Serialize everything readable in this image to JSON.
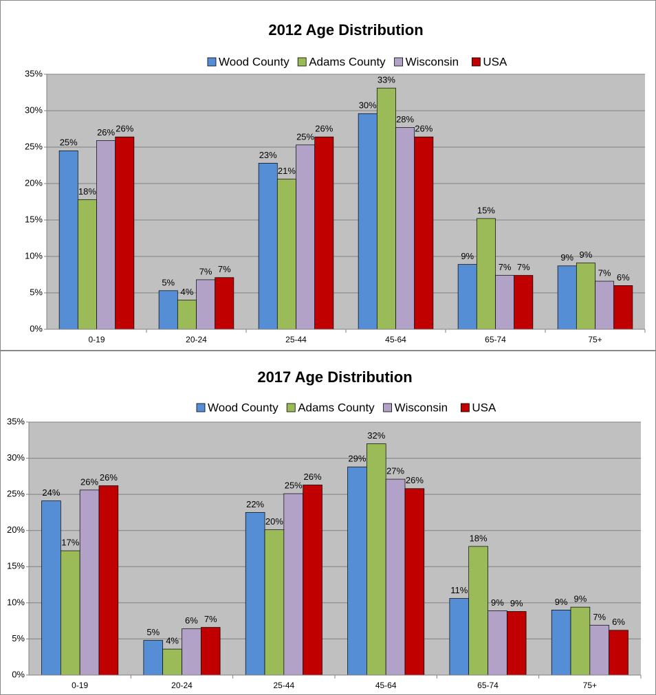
{
  "chart_data": [
    {
      "type": "bar",
      "title": "2012 Age Distribution",
      "categories": [
        "0-19",
        "20-24",
        "25-44",
        "45-64",
        "65-74",
        "75+"
      ],
      "series": [
        {
          "name": "Wood County",
          "color": "#558ed5",
          "values": [
            24.5,
            5.3,
            22.8,
            29.6,
            8.9,
            8.7
          ],
          "value_labels": [
            "25%",
            "5%",
            "23%",
            "30%",
            "9%",
            "9%"
          ]
        },
        {
          "name": "Adams County",
          "color": "#9bbb59",
          "values": [
            17.8,
            4.0,
            20.6,
            33.1,
            15.2,
            9.1
          ],
          "value_labels": [
            "18%",
            "4%",
            "21%",
            "33%",
            "15%",
            "9%"
          ]
        },
        {
          "name": "Wisconsin",
          "color": "#b3a2c7",
          "values": [
            25.9,
            6.8,
            25.3,
            27.7,
            7.4,
            6.6
          ],
          "value_labels": [
            "26%",
            "7%",
            "25%",
            "28%",
            "7%",
            "7%"
          ]
        },
        {
          "name": "USA",
          "color": "#c00000",
          "values": [
            26.4,
            7.1,
            26.4,
            26.4,
            7.4,
            6.0
          ],
          "value_labels": [
            "26%",
            "7%",
            "26%",
            "26%",
            "7%",
            "6%"
          ]
        }
      ],
      "ylim": [
        0,
        35
      ],
      "yticks": [
        {
          "value": 0,
          "label": "0%"
        },
        {
          "value": 5,
          "label": "5%"
        },
        {
          "value": 10,
          "label": "10%"
        },
        {
          "value": 15,
          "label": "15%"
        },
        {
          "value": 20,
          "label": "20%"
        },
        {
          "value": 25,
          "label": "25%"
        },
        {
          "value": 30,
          "label": "30%"
        },
        {
          "value": 35,
          "label": "35%"
        }
      ],
      "grid": true,
      "legend": "top"
    },
    {
      "type": "bar",
      "title": "2017 Age Distribution",
      "categories": [
        "0-19",
        "20-24",
        "25-44",
        "45-64",
        "65-74",
        "75+"
      ],
      "series": [
        {
          "name": "Wood County",
          "color": "#558ed5",
          "values": [
            24.1,
            4.8,
            22.5,
            28.8,
            10.6,
            9.0
          ],
          "value_labels": [
            "24%",
            "5%",
            "22%",
            "29%",
            "11%",
            "9%"
          ]
        },
        {
          "name": "Adams County",
          "color": "#9bbb59",
          "values": [
            17.2,
            3.6,
            20.1,
            32.0,
            17.8,
            9.4
          ],
          "value_labels": [
            "17%",
            "4%",
            "20%",
            "32%",
            "18%",
            "9%"
          ]
        },
        {
          "name": "Wisconsin",
          "color": "#b3a2c7",
          "values": [
            25.6,
            6.4,
            25.1,
            27.1,
            8.9,
            6.9
          ],
          "value_labels": [
            "26%",
            "6%",
            "25%",
            "27%",
            "9%",
            "7%"
          ]
        },
        {
          "name": "USA",
          "color": "#c00000",
          "values": [
            26.2,
            6.6,
            26.3,
            25.8,
            8.8,
            6.2
          ],
          "value_labels": [
            "26%",
            "7%",
            "26%",
            "26%",
            "9%",
            "6%"
          ]
        }
      ],
      "ylim": [
        0,
        35
      ],
      "yticks": [
        {
          "value": 0,
          "label": "0%"
        },
        {
          "value": 5,
          "label": "5%"
        },
        {
          "value": 10,
          "label": "10%"
        },
        {
          "value": 15,
          "label": "15%"
        },
        {
          "value": 20,
          "label": "20%"
        },
        {
          "value": 25,
          "label": "25%"
        },
        {
          "value": 30,
          "label": "30%"
        },
        {
          "value": 35,
          "label": "35%"
        }
      ],
      "grid": true,
      "legend": "top"
    }
  ]
}
